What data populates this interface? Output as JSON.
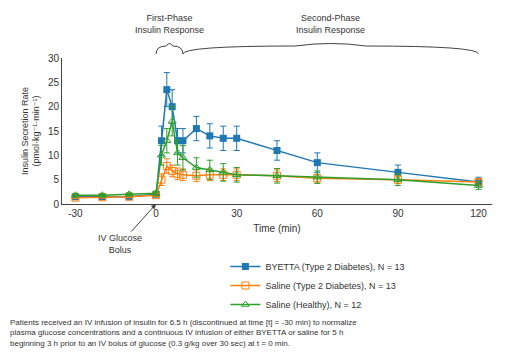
{
  "chart_data": {
    "type": "line",
    "x": [
      -30,
      -20,
      -10,
      0,
      2,
      4,
      6,
      8,
      10,
      15,
      20,
      25,
      30,
      45,
      60,
      90,
      120
    ],
    "series": [
      {
        "name": "BYETTA (Type 2 Diabetes), N = 13",
        "marker": "square",
        "values": [
          1.5,
          1.5,
          1.5,
          2.0,
          13.0,
          23.5,
          20.0,
          13.0,
          13.0,
          15.5,
          14.0,
          13.5,
          13.5,
          11.0,
          8.5,
          6.5,
          4.5
        ],
        "error": [
          0.3,
          0.3,
          0.3,
          0.4,
          3.0,
          3.5,
          3.5,
          2.5,
          2.5,
          2.5,
          2.5,
          2.5,
          2.5,
          2.0,
          2.0,
          1.5,
          1.0
        ]
      },
      {
        "name": "Saline (Type 2 Diabetes), N = 13",
        "marker": "square-open",
        "values": [
          1.3,
          1.4,
          1.5,
          1.8,
          5.0,
          7.8,
          6.8,
          6.2,
          6.0,
          5.8,
          6.0,
          6.0,
          6.0,
          5.8,
          5.3,
          5.0,
          4.5
        ],
        "error": [
          0.2,
          0.2,
          0.2,
          0.3,
          1.2,
          1.5,
          1.2,
          1.2,
          1.2,
          1.2,
          1.2,
          1.2,
          1.2,
          1.2,
          0.8,
          0.8,
          0.6
        ]
      },
      {
        "name": "Saline (Healthy), N = 12",
        "marker": "triangle-up-open",
        "values": [
          1.8,
          1.8,
          2.0,
          2.2,
          10.0,
          13.0,
          17.0,
          10.5,
          9.5,
          7.5,
          7.0,
          6.5,
          6.0,
          5.8,
          5.5,
          5.0,
          3.8
        ],
        "error": [
          0.3,
          0.3,
          0.3,
          0.4,
          2.0,
          2.5,
          3.0,
          2.5,
          2.5,
          2.0,
          2.0,
          1.8,
          1.5,
          1.5,
          1.3,
          1.2,
          0.8
        ]
      }
    ],
    "xlabel": "Time (min)",
    "ylabel": "Insulin Secretion Rate\n(pmol·kg⁻¹·min⁻¹)",
    "xlim": [
      -35,
      125
    ],
    "ylim": [
      0,
      30
    ],
    "xticks": [
      -30,
      0,
      30,
      60,
      90,
      120
    ],
    "yticks": [
      0,
      5,
      10,
      15,
      20,
      25,
      30
    ],
    "grid": false,
    "legend": "bottom",
    "annotations": [
      {
        "text": "IV Glucose\nBolus",
        "x": 0
      },
      {
        "text": "First-Phase\nInsulin Response",
        "x_start": 0,
        "x_end": 10
      },
      {
        "text": "Second-Phase\nInsulin Response",
        "x_start": 10,
        "x_end": 120
      }
    ],
    "footnote": "Patients received an IV infusion of insulin for 6.5 h (discontinued at time [t] = -30 min) to normalize\nplasma glucose concentrations and a continuous IV infusion of either BYETTA or saline for 5 h\nbeginning 3 h prior to an IV bolus of glucose (0.3 g/kg over 30 sec) at t = 0 min."
  }
}
